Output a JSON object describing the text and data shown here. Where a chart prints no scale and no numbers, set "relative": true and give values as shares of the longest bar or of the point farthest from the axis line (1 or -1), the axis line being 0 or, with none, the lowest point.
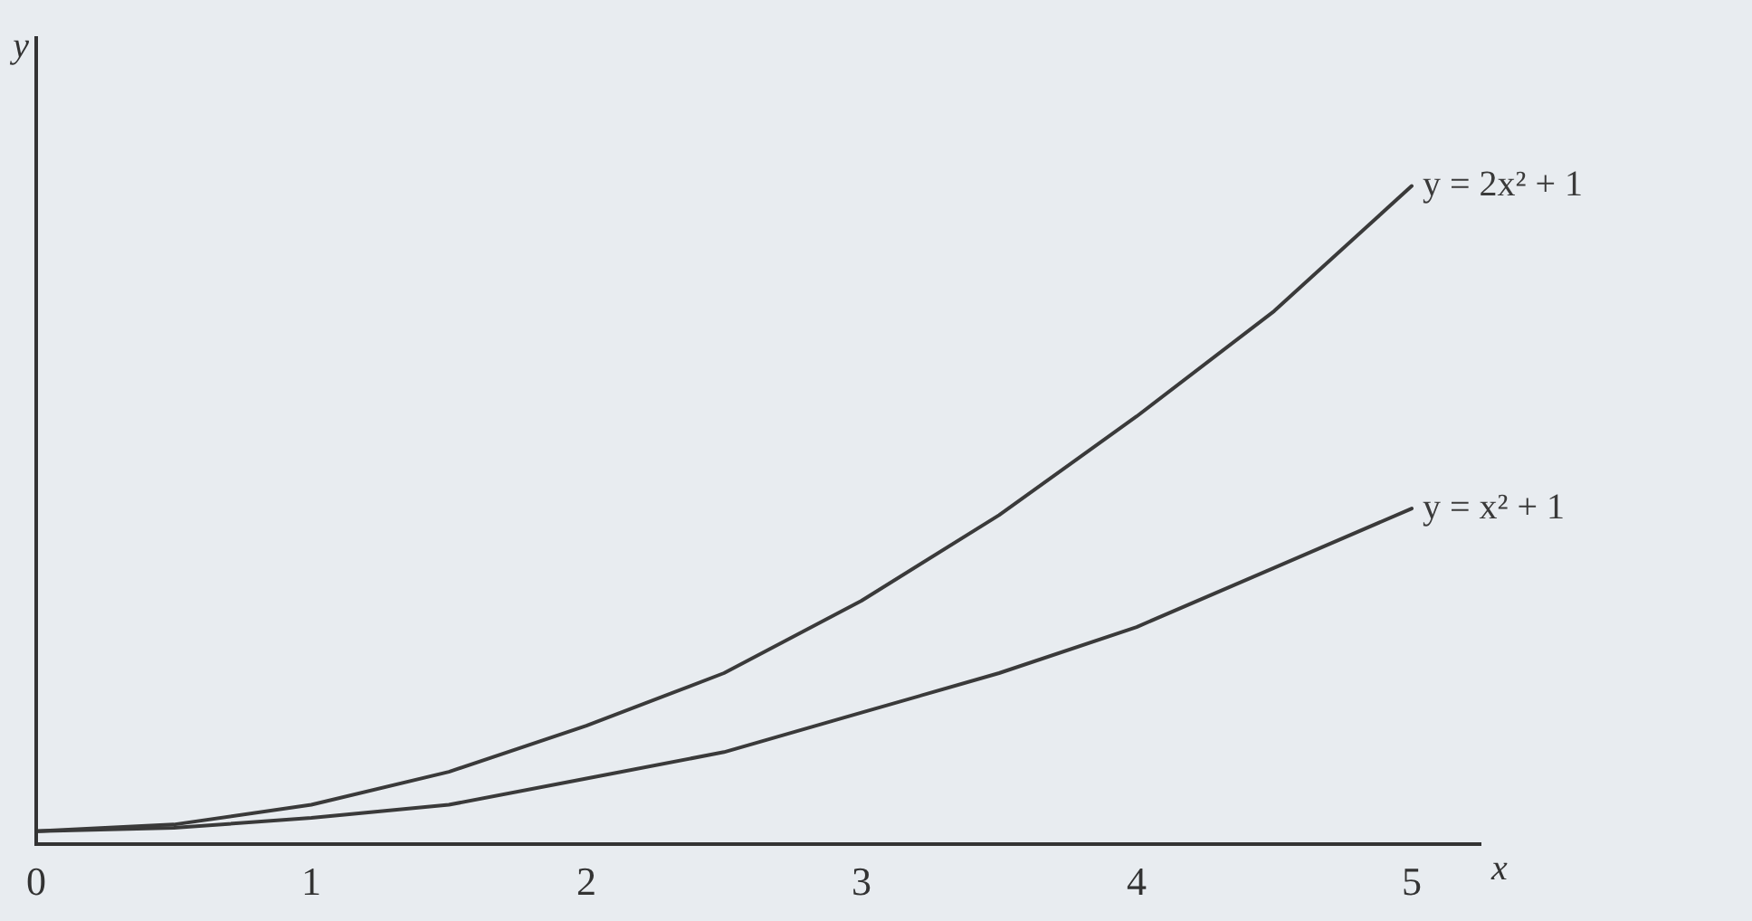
{
  "chart_data": {
    "type": "line",
    "xlabel": "x",
    "ylabel": "y",
    "relative": true,
    "x": [
      0,
      0.5,
      1,
      1.5,
      2,
      2.5,
      3,
      3.5,
      4,
      4.5,
      5
    ],
    "xlim": [
      0,
      5.25
    ],
    "xticks": [
      0,
      1,
      2,
      3,
      4,
      5
    ],
    "series": [
      {
        "name": "y = 2x² + 1",
        "color": "#3a3a3a",
        "values": [
          0.02,
          0.03,
          0.06,
          0.11,
          0.18,
          0.26,
          0.37,
          0.5,
          0.65,
          0.81,
          1
        ]
      },
      {
        "name": "y = x² + 1",
        "color": "#3a3a3a",
        "values": [
          0.02,
          0.025,
          0.04,
          0.06,
          0.1,
          0.14,
          0.2,
          0.26,
          0.33,
          0.42,
          0.51
        ]
      }
    ],
    "grid": false,
    "legend": false,
    "marker": "none",
    "line_style": "solid"
  }
}
